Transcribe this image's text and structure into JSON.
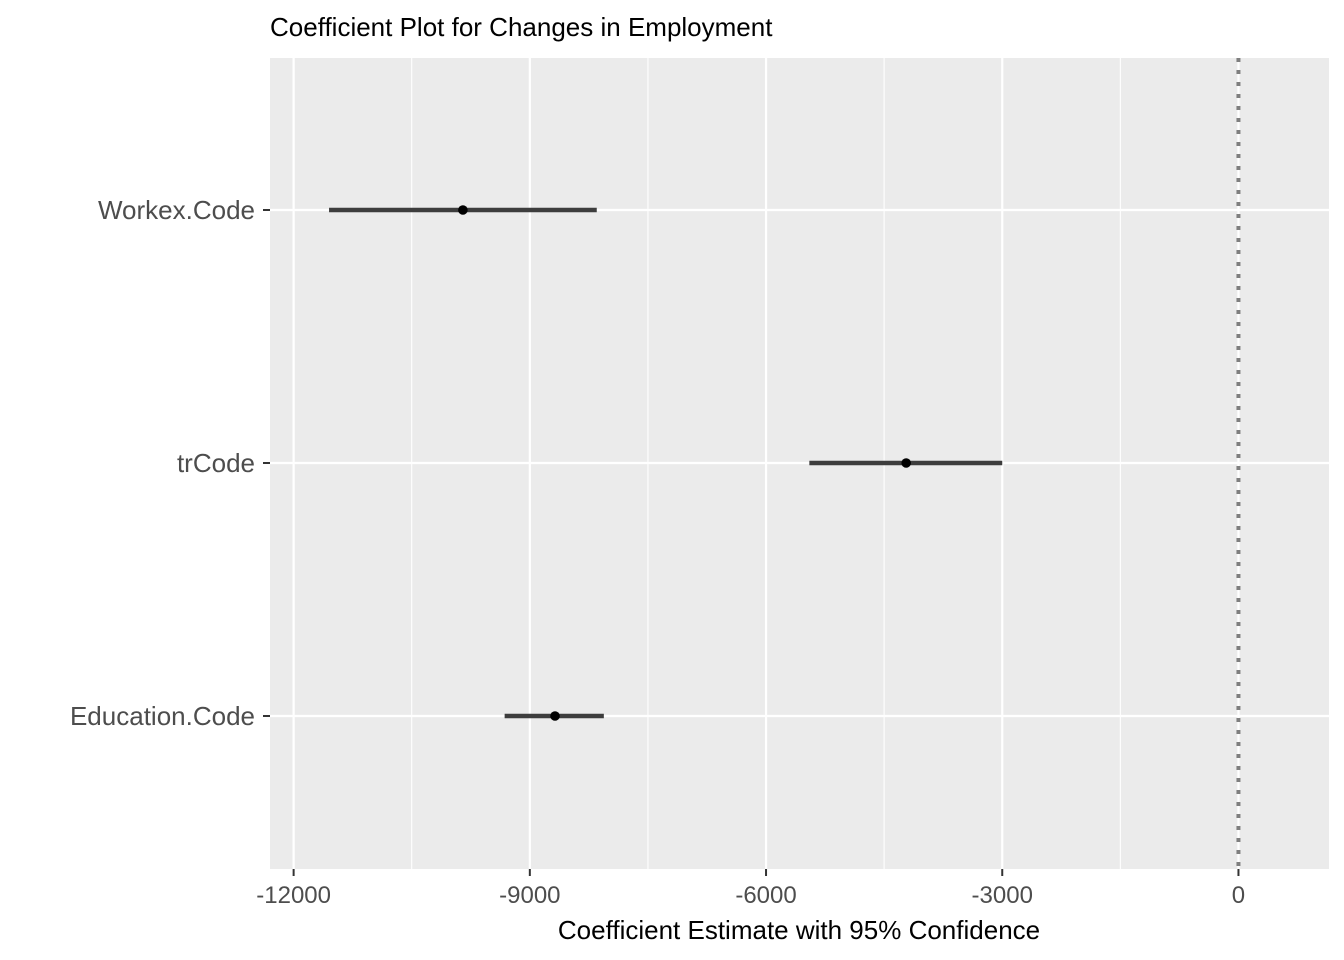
{
  "chart_data": {
    "type": "scatter",
    "title": "Coefficient Plot for Changes in Employment",
    "xlabel": "Coefficient Estimate with 95% Confidence",
    "ylabel": "",
    "xlim": [
      -12300,
      1150
    ],
    "xticks": [
      -12000,
      -9000,
      -6000,
      -3000,
      0
    ],
    "xtick_labels": [
      "-12000",
      "-9000",
      "-6000",
      "-3000",
      "0"
    ],
    "x_minor_ticks": [
      -10500,
      -7500,
      -4500,
      -1500
    ],
    "reference_line": 0,
    "categories": [
      "Workex.Code",
      "trCode",
      "Education.Code"
    ],
    "points": [
      {
        "term": "Workex.Code",
        "estimate": -9850,
        "low": -11550,
        "high": -8150
      },
      {
        "term": "trCode",
        "estimate": -4220,
        "low": -5450,
        "high": -3000
      },
      {
        "term": "Education.Code",
        "estimate": -8680,
        "low": -9320,
        "high": -8060
      }
    ],
    "grid": true,
    "legend": "none",
    "colors": {
      "panel_background": "#ebebeb",
      "grid_line": "#ffffff",
      "point": "#000000",
      "interval": "#3d3d3d",
      "reference_line": "#7f7f7f",
      "tick_label": "#4d4d4d",
      "tick_mark": "#333333"
    }
  }
}
